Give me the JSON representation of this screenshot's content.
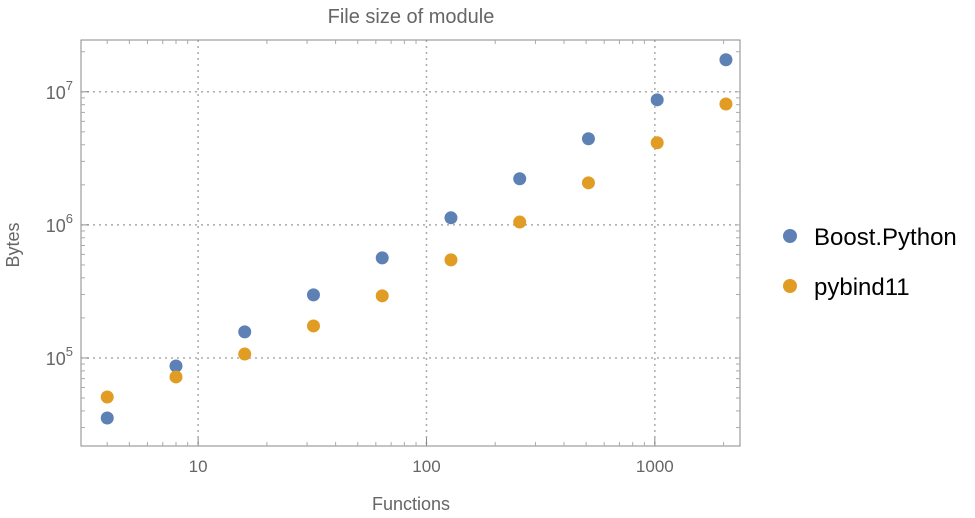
{
  "chart_data": {
    "type": "scatter",
    "title": "File size of module",
    "xlabel": "Functions",
    "ylabel": "Bytes",
    "xscale": "log",
    "yscale": "log",
    "xlim": [
      3.07,
      2360
    ],
    "ylim": [
      21800,
      24500000
    ],
    "grid": true,
    "legend_position": "right",
    "x_ticks": [
      {
        "value": 10,
        "label": "10"
      },
      {
        "value": 100,
        "label": "100"
      },
      {
        "value": 1000,
        "label": "1000"
      }
    ],
    "y_ticks": [
      {
        "value": 100000,
        "base": "10",
        "exp": "5"
      },
      {
        "value": 1000000,
        "base": "10",
        "exp": "6"
      },
      {
        "value": 10000000,
        "base": "10",
        "exp": "7"
      }
    ],
    "x": [
      4,
      8,
      16,
      32,
      64,
      128,
      256,
      512,
      1024,
      2048
    ],
    "series": [
      {
        "name": "Boost.Python",
        "color": "#5e81b5",
        "values": [
          35400,
          87000,
          157000,
          298000,
          565000,
          1130000,
          2220000,
          4440000,
          8700000,
          17400000
        ]
      },
      {
        "name": "pybind11",
        "color": "#e19c24",
        "values": [
          50900,
          72000,
          107000,
          174000,
          293000,
          546000,
          1050000,
          2070000,
          4140000,
          8100000
        ]
      }
    ]
  }
}
